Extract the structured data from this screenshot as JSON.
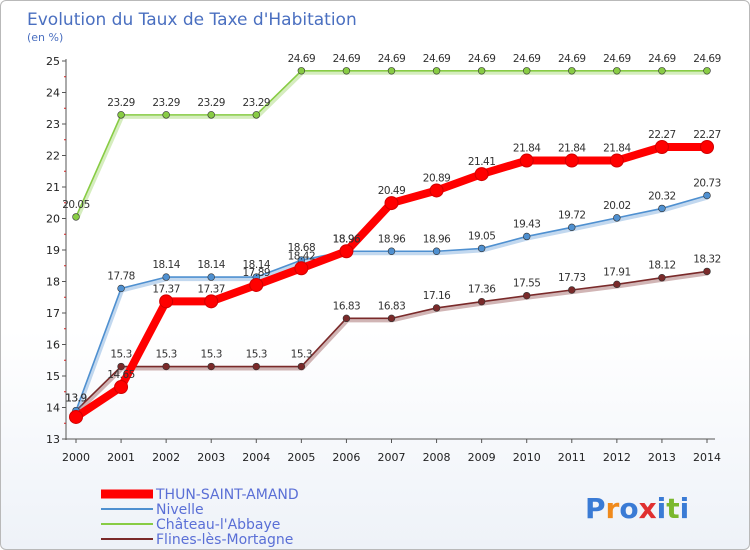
{
  "chart_data": {
    "type": "line",
    "title": "Evolution du Taux de Taxe d'Habitation",
    "subtitle": "(en %)",
    "x": [
      "2000",
      "2001",
      "2002",
      "2003",
      "2004",
      "2005",
      "2006",
      "2007",
      "2008",
      "2009",
      "2010",
      "2011",
      "2012",
      "2013",
      "2014"
    ],
    "ylim": [
      13,
      25
    ],
    "yticks": [
      13,
      14,
      15,
      16,
      17,
      18,
      19,
      20,
      21,
      22,
      23,
      24,
      25
    ],
    "grid": false,
    "legend_position": "bottom-left",
    "series": [
      {
        "name": "THUN-SAINT-AMAND",
        "color": "#ff0000",
        "values": [
          13.7,
          14.65,
          17.37,
          17.37,
          17.89,
          18.42,
          18.96,
          20.49,
          20.89,
          21.41,
          21.84,
          21.84,
          21.84,
          22.27,
          22.27
        ],
        "labels": [
          "",
          "14.65",
          "17.37",
          "17.37",
          "17.89",
          "18.42",
          "18.96",
          "20.49",
          "20.89",
          "21.41",
          "21.84",
          "21.84",
          "21.84",
          "22.27",
          "22.27"
        ]
      },
      {
        "name": "Nivelle",
        "color": "#4f90d0",
        "values": [
          13.9,
          17.78,
          18.14,
          18.14,
          18.14,
          18.68,
          18.96,
          18.96,
          18.96,
          19.05,
          19.43,
          19.72,
          20.02,
          20.32,
          20.73
        ],
        "labels": [
          "13.9",
          "17.78",
          "18.14",
          "18.14",
          "18.14",
          "18.68",
          "18.96",
          "18.96",
          "18.96",
          "19.05",
          "19.43",
          "19.72",
          "20.02",
          "20.32",
          "20.73"
        ]
      },
      {
        "name": "Château-l'Abbaye",
        "color": "#88cc44",
        "values": [
          20.05,
          23.29,
          23.29,
          23.29,
          23.29,
          24.69,
          24.69,
          24.69,
          24.69,
          24.69,
          24.69,
          24.69,
          24.69,
          24.69,
          24.69
        ],
        "labels": [
          "20.05",
          "23.29",
          "23.29",
          "23.29",
          "23.29",
          "24.69",
          "24.69",
          "24.69",
          "24.69",
          "24.69",
          "24.69",
          "24.69",
          "24.69",
          "24.69",
          "24.69"
        ]
      },
      {
        "name": "Flines-lès-Mortagne",
        "color": "#7a2a2a",
        "values": [
          13.9,
          15.3,
          15.3,
          15.3,
          15.3,
          15.3,
          16.83,
          16.83,
          17.16,
          17.36,
          17.55,
          17.73,
          17.91,
          18.12,
          18.32
        ],
        "labels": [
          "13.9",
          "15.3",
          "15.3",
          "15.3",
          "15.3",
          "15.3",
          "16.83",
          "16.83",
          "17.16",
          "17.36",
          "17.55",
          "17.73",
          "17.91",
          "18.12",
          "18.32"
        ]
      }
    ]
  },
  "brand": {
    "letters": [
      "P",
      "r",
      "o",
      "x",
      "i",
      "t",
      "i"
    ],
    "colors": [
      "#3a7bd5",
      "#f08a1c",
      "#3a7bd5",
      "#e03030",
      "#3a7bd5",
      "#7ab82e",
      "#3a7bd5"
    ]
  }
}
